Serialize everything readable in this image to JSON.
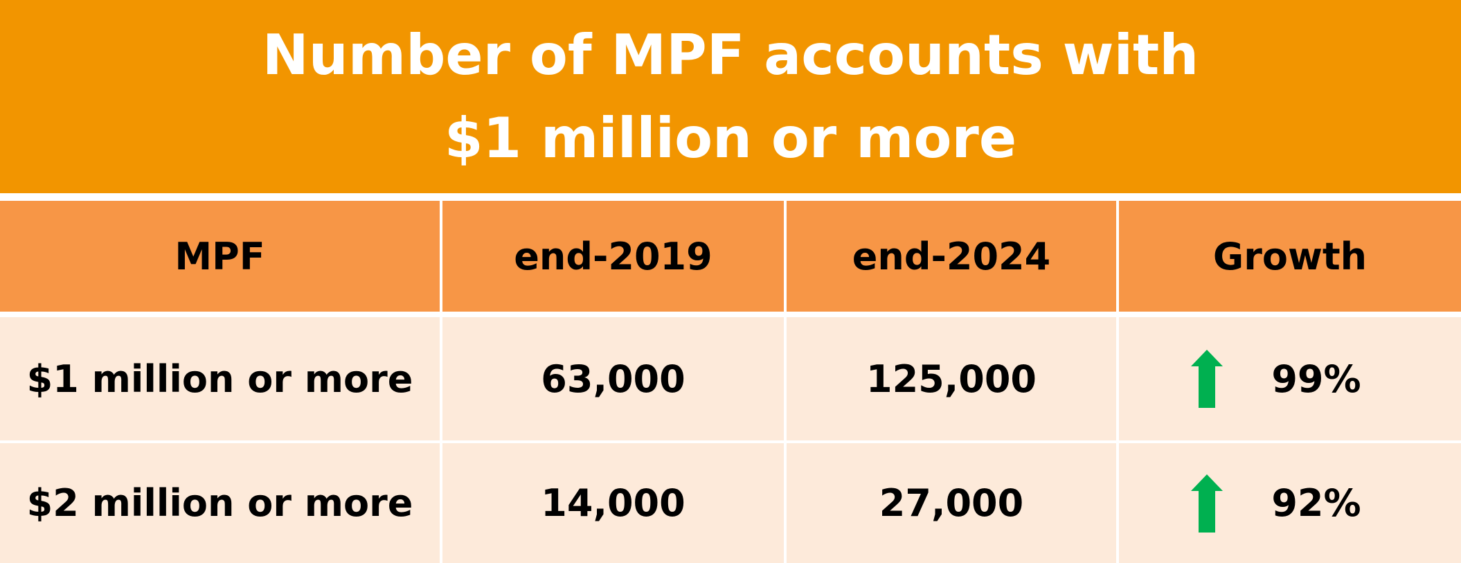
{
  "chart_data": {
    "type": "table",
    "title_lines": [
      "Number of MPF accounts with",
      "$1 million or more"
    ],
    "columns": [
      "MPF",
      "end-2019",
      "end-2024",
      "Growth"
    ],
    "rows": [
      {
        "label": "$1 million or more",
        "end_2019": "63,000",
        "end_2024": "125,000",
        "growth": "99%",
        "direction": "up"
      },
      {
        "label": "$2 million or more",
        "end_2019": "14,000",
        "end_2024": "27,000",
        "growth": "92%",
        "direction": "up"
      }
    ]
  },
  "colors": {
    "title_bg": "#F29500",
    "header_bg": "#F79646",
    "row_bg": "#FDEADA",
    "arrow": "#00B050"
  },
  "icons": {
    "growth_indicator": "up-arrow-icon"
  }
}
